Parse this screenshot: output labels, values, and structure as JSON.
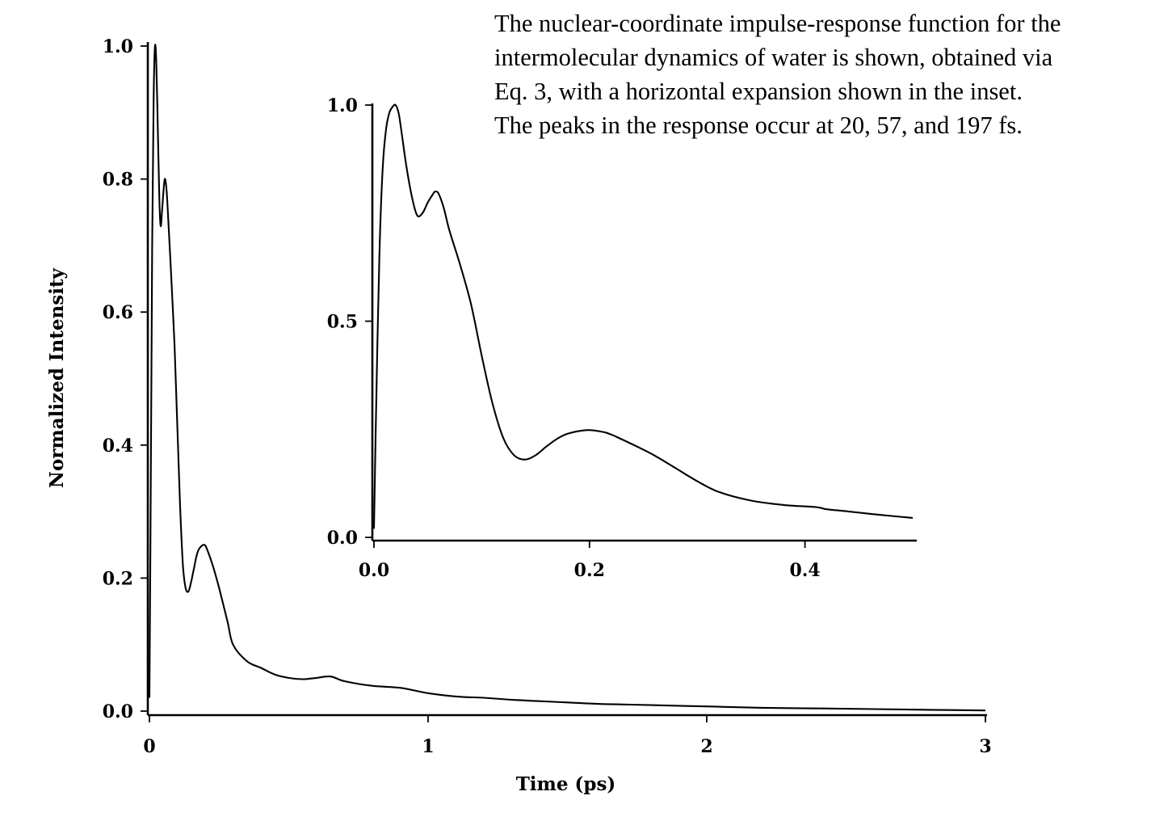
{
  "caption": {
    "lines": [
      "The nuclear-coordinate impulse-response function for the",
      "intermolecular dynamics of water is shown, obtained via",
      "Eq. 3, with a horizontal expansion shown in the inset.",
      "The peaks in the response occur at 20, 57, and 197 fs."
    ]
  },
  "chart_data": [
    {
      "type": "line",
      "role": "main",
      "xlabel": "Time (ps)",
      "ylabel": "Normalized Intensity",
      "xlim": [
        0,
        3
      ],
      "ylim": [
        0,
        1.0
      ],
      "xticks": [
        "0",
        "1",
        "2",
        "3"
      ],
      "yticks": [
        "0.0",
        "0.2",
        "0.4",
        "0.6",
        "0.8",
        "1.0"
      ],
      "grid": false,
      "series": [
        {
          "x": [
            0,
            0.005,
            0.01,
            0.015,
            0.02,
            0.025,
            0.03,
            0.035,
            0.04,
            0.045,
            0.05,
            0.055,
            0.06,
            0.065,
            0.075,
            0.09,
            0.1,
            0.11,
            0.12,
            0.13,
            0.14,
            0.15,
            0.16,
            0.17,
            0.18,
            0.197,
            0.21,
            0.23,
            0.25,
            0.28,
            0.3,
            0.35,
            0.4,
            0.45,
            0.5,
            0.55,
            0.6,
            0.65,
            0.7,
            0.8,
            0.9,
            1.0,
            1.1,
            1.2,
            1.3,
            1.4,
            1.5,
            1.6,
            1.7,
            1.8,
            2.0,
            2.2,
            2.4,
            2.6,
            2.8,
            3.0
          ],
          "y": [
            0.02,
            0.35,
            0.7,
            0.92,
            1.0,
            0.97,
            0.88,
            0.78,
            0.73,
            0.75,
            0.78,
            0.8,
            0.79,
            0.76,
            0.68,
            0.55,
            0.43,
            0.31,
            0.22,
            0.185,
            0.18,
            0.195,
            0.215,
            0.235,
            0.245,
            0.25,
            0.24,
            0.215,
            0.185,
            0.135,
            0.1,
            0.075,
            0.065,
            0.055,
            0.05,
            0.048,
            0.05,
            0.052,
            0.045,
            0.038,
            0.035,
            0.027,
            0.022,
            0.02,
            0.017,
            0.015,
            0.013,
            0.011,
            0.01,
            0.009,
            0.007,
            0.005,
            0.004,
            0.003,
            0.002,
            0.001
          ]
        }
      ]
    },
    {
      "type": "line",
      "role": "inset",
      "xlim": [
        0,
        0.5
      ],
      "ylim": [
        0,
        1.0
      ],
      "xticks": [
        "0.0",
        "0.2",
        "0.4"
      ],
      "yticks": [
        "0.0",
        "0.5",
        "1.0"
      ],
      "grid": false,
      "series": [
        {
          "x": [
            0,
            0.002,
            0.005,
            0.008,
            0.011,
            0.014,
            0.017,
            0.02,
            0.023,
            0.026,
            0.03,
            0.035,
            0.04,
            0.045,
            0.05,
            0.055,
            0.057,
            0.06,
            0.065,
            0.07,
            0.08,
            0.09,
            0.1,
            0.11,
            0.12,
            0.13,
            0.14,
            0.15,
            0.16,
            0.17,
            0.18,
            0.197,
            0.21,
            0.22,
            0.24,
            0.26,
            0.28,
            0.3,
            0.32,
            0.35,
            0.38,
            0.41,
            0.42,
            0.44,
            0.47,
            0.5
          ],
          "y": [
            0.02,
            0.3,
            0.65,
            0.85,
            0.94,
            0.98,
            0.995,
            1.0,
            0.98,
            0.93,
            0.86,
            0.79,
            0.745,
            0.75,
            0.775,
            0.795,
            0.8,
            0.795,
            0.76,
            0.71,
            0.63,
            0.54,
            0.42,
            0.31,
            0.23,
            0.19,
            0.18,
            0.19,
            0.21,
            0.228,
            0.24,
            0.248,
            0.245,
            0.238,
            0.215,
            0.19,
            0.16,
            0.13,
            0.105,
            0.085,
            0.075,
            0.07,
            0.065,
            0.06,
            0.052,
            0.045
          ]
        }
      ]
    }
  ]
}
